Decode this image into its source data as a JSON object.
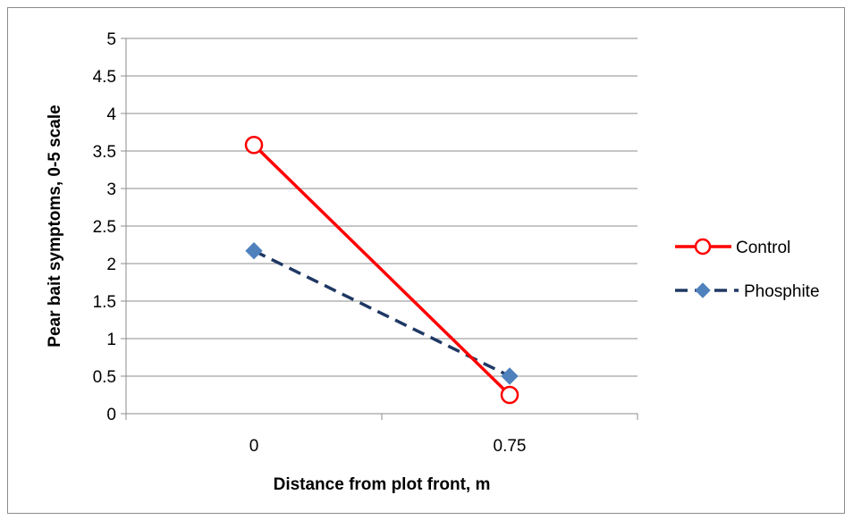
{
  "chart_data": {
    "type": "line",
    "title": "",
    "xlabel": "Distance from plot front, m",
    "ylabel": "Pear bait symptoms, 0-5 scale",
    "categories": [
      "0",
      "0.75"
    ],
    "ylim": [
      0,
      5
    ],
    "ytick_step": 0.5,
    "yticks": [
      "0",
      "0.5",
      "1",
      "1.5",
      "2",
      "2.5",
      "3",
      "3.5",
      "4",
      "4.5",
      "5"
    ],
    "grid": "horizontal",
    "legend_position": "right",
    "series": [
      {
        "name": "Control",
        "values": [
          3.58,
          0.25
        ],
        "color": "#ff0000",
        "line_style": "solid",
        "marker": "open-circle"
      },
      {
        "name": "Phosphite",
        "values": [
          2.17,
          0.5
        ],
        "color": "#1f3864",
        "marker_color": "#4f81bd",
        "line_style": "dashed",
        "marker": "diamond"
      }
    ]
  }
}
